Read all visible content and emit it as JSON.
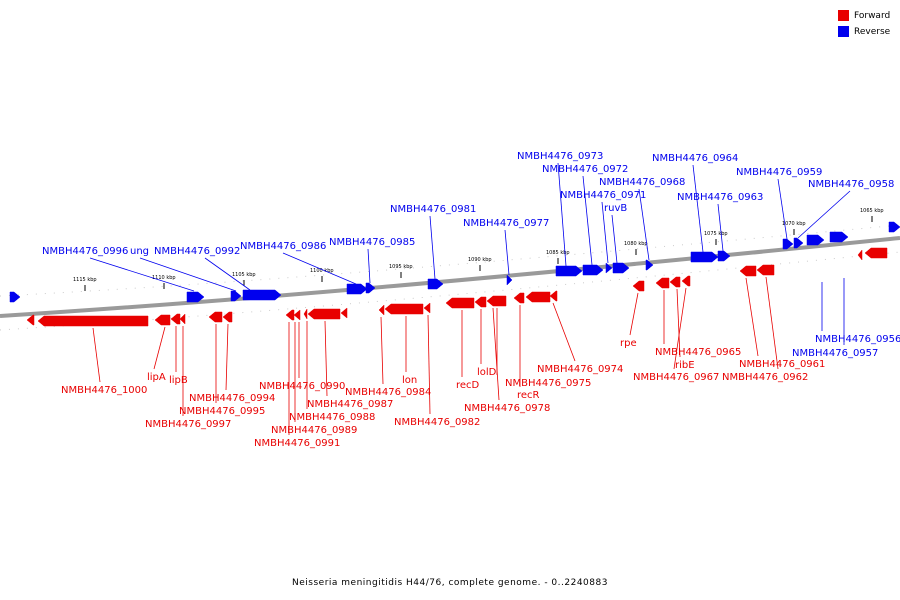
{
  "legend": {
    "forward_label": "Forward",
    "reverse_label": "Reverse",
    "forward_color": "#e80000",
    "reverse_color": "#0000ee"
  },
  "caption": "Neisseria meningitidis H44/76, complete genome. - 0..2240883",
  "scale_labels": [
    "1115 kbp",
    "1110 kbp",
    "1105 kbp",
    "1100 kbp",
    "1095 kbp",
    "1090 kbp",
    "1085 kbp",
    "1080 kbp",
    "1075 kbp",
    "1070 kbp",
    "1065 kbp"
  ],
  "reverse_genes": [
    "NMBH4476_0996",
    "ung",
    "NMBH4476_0992",
    "NMBH4476_0986",
    "NMBH4476_0985",
    "NMBH4476_0981",
    "NMBH4476_0977",
    "NMBH4476_0973",
    "NMBH4476_0972",
    "NMBH4476_0971",
    "ruvB",
    "NMBH4476_0968",
    "NMBH4476_0964",
    "NMBH4476_0963",
    "NMBH4476_0959",
    "NMBH4476_0958",
    "NMBH4476_0956",
    "NMBH4476_0957"
  ],
  "forward_genes": [
    "NMBH4476_1000",
    "lipA",
    "lipB",
    "NMBH4476_0994",
    "NMBH4476_0995",
    "NMBH4476_0997",
    "NMBH4476_0990",
    "NMBH4476_0987",
    "NMBH4476_0988",
    "NMBH4476_0989",
    "NMBH4476_0991",
    "NMBH4476_0984",
    "lon",
    "NMBH4476_0982",
    "recD",
    "lolD",
    "NMBH4476_0975",
    "recR",
    "NMBH4476_0978",
    "NMBH4476_0974",
    "rpe",
    "NMBH4476_0965",
    "ribE",
    "NMBH4476_0967",
    "NMBH4476_0961",
    "NMBH4476_0962"
  ]
}
